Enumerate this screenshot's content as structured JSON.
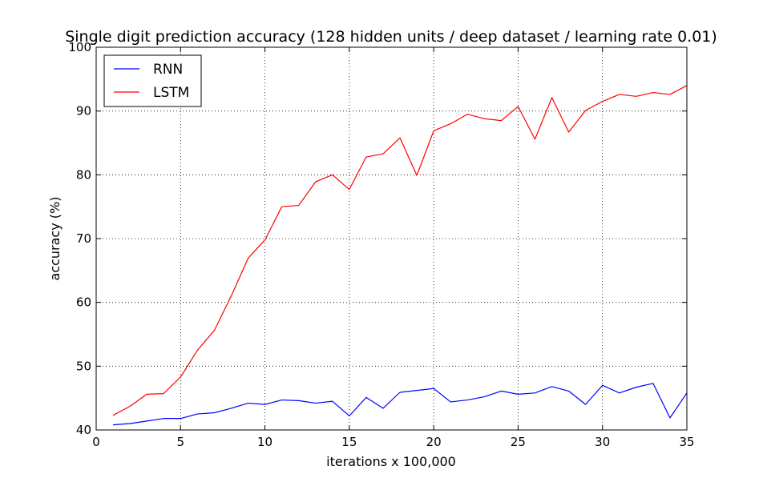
{
  "chart_data": {
    "type": "line",
    "title": "Single digit prediction accuracy (128 hidden units / deep dataset / learning rate 0.01)",
    "xlabel": "iterations x 100,000",
    "ylabel": "accuracy (%)",
    "xlim": [
      0,
      35
    ],
    "ylim": [
      40,
      100
    ],
    "xticks": [
      0,
      5,
      10,
      15,
      20,
      25,
      30,
      35
    ],
    "yticks": [
      40,
      50,
      60,
      70,
      80,
      90,
      100
    ],
    "xtick_labels": [
      "0",
      "5",
      "10",
      "15",
      "20",
      "25",
      "30",
      "35"
    ],
    "ytick_labels": [
      "40",
      "50",
      "60",
      "70",
      "80",
      "90",
      "100"
    ],
    "grid": true,
    "legend_position": "top-left",
    "x": [
      1,
      2,
      3,
      4,
      5,
      6,
      7,
      8,
      9,
      10,
      11,
      12,
      13,
      14,
      15,
      16,
      17,
      18,
      19,
      20,
      21,
      22,
      23,
      24,
      25,
      26,
      27,
      28,
      29,
      30,
      31,
      32,
      33,
      34,
      35
    ],
    "series": [
      {
        "name": "RNN",
        "color": "#0000ff",
        "values": [
          40.8,
          41.0,
          41.4,
          41.8,
          41.8,
          42.5,
          42.7,
          43.4,
          44.2,
          44.0,
          44.7,
          44.6,
          44.2,
          44.5,
          42.2,
          45.1,
          43.4,
          45.9,
          46.2,
          46.5,
          44.4,
          44.7,
          45.2,
          46.1,
          45.6,
          45.8,
          46.8,
          46.1,
          44.0,
          47.0,
          45.8,
          46.7,
          47.3,
          41.9,
          45.8
        ]
      },
      {
        "name": "LSTM",
        "color": "#ff0000",
        "values": [
          42.3,
          43.7,
          45.6,
          45.7,
          48.3,
          52.5,
          55.6,
          61.0,
          66.9,
          69.8,
          75.0,
          75.2,
          78.9,
          80.0,
          77.7,
          82.8,
          83.3,
          85.8,
          79.9,
          86.9,
          88.0,
          89.5,
          88.8,
          88.5,
          90.7,
          85.6,
          92.1,
          86.7,
          90.1,
          91.5,
          92.6,
          92.3,
          92.9,
          92.6,
          94.0
        ]
      }
    ]
  }
}
